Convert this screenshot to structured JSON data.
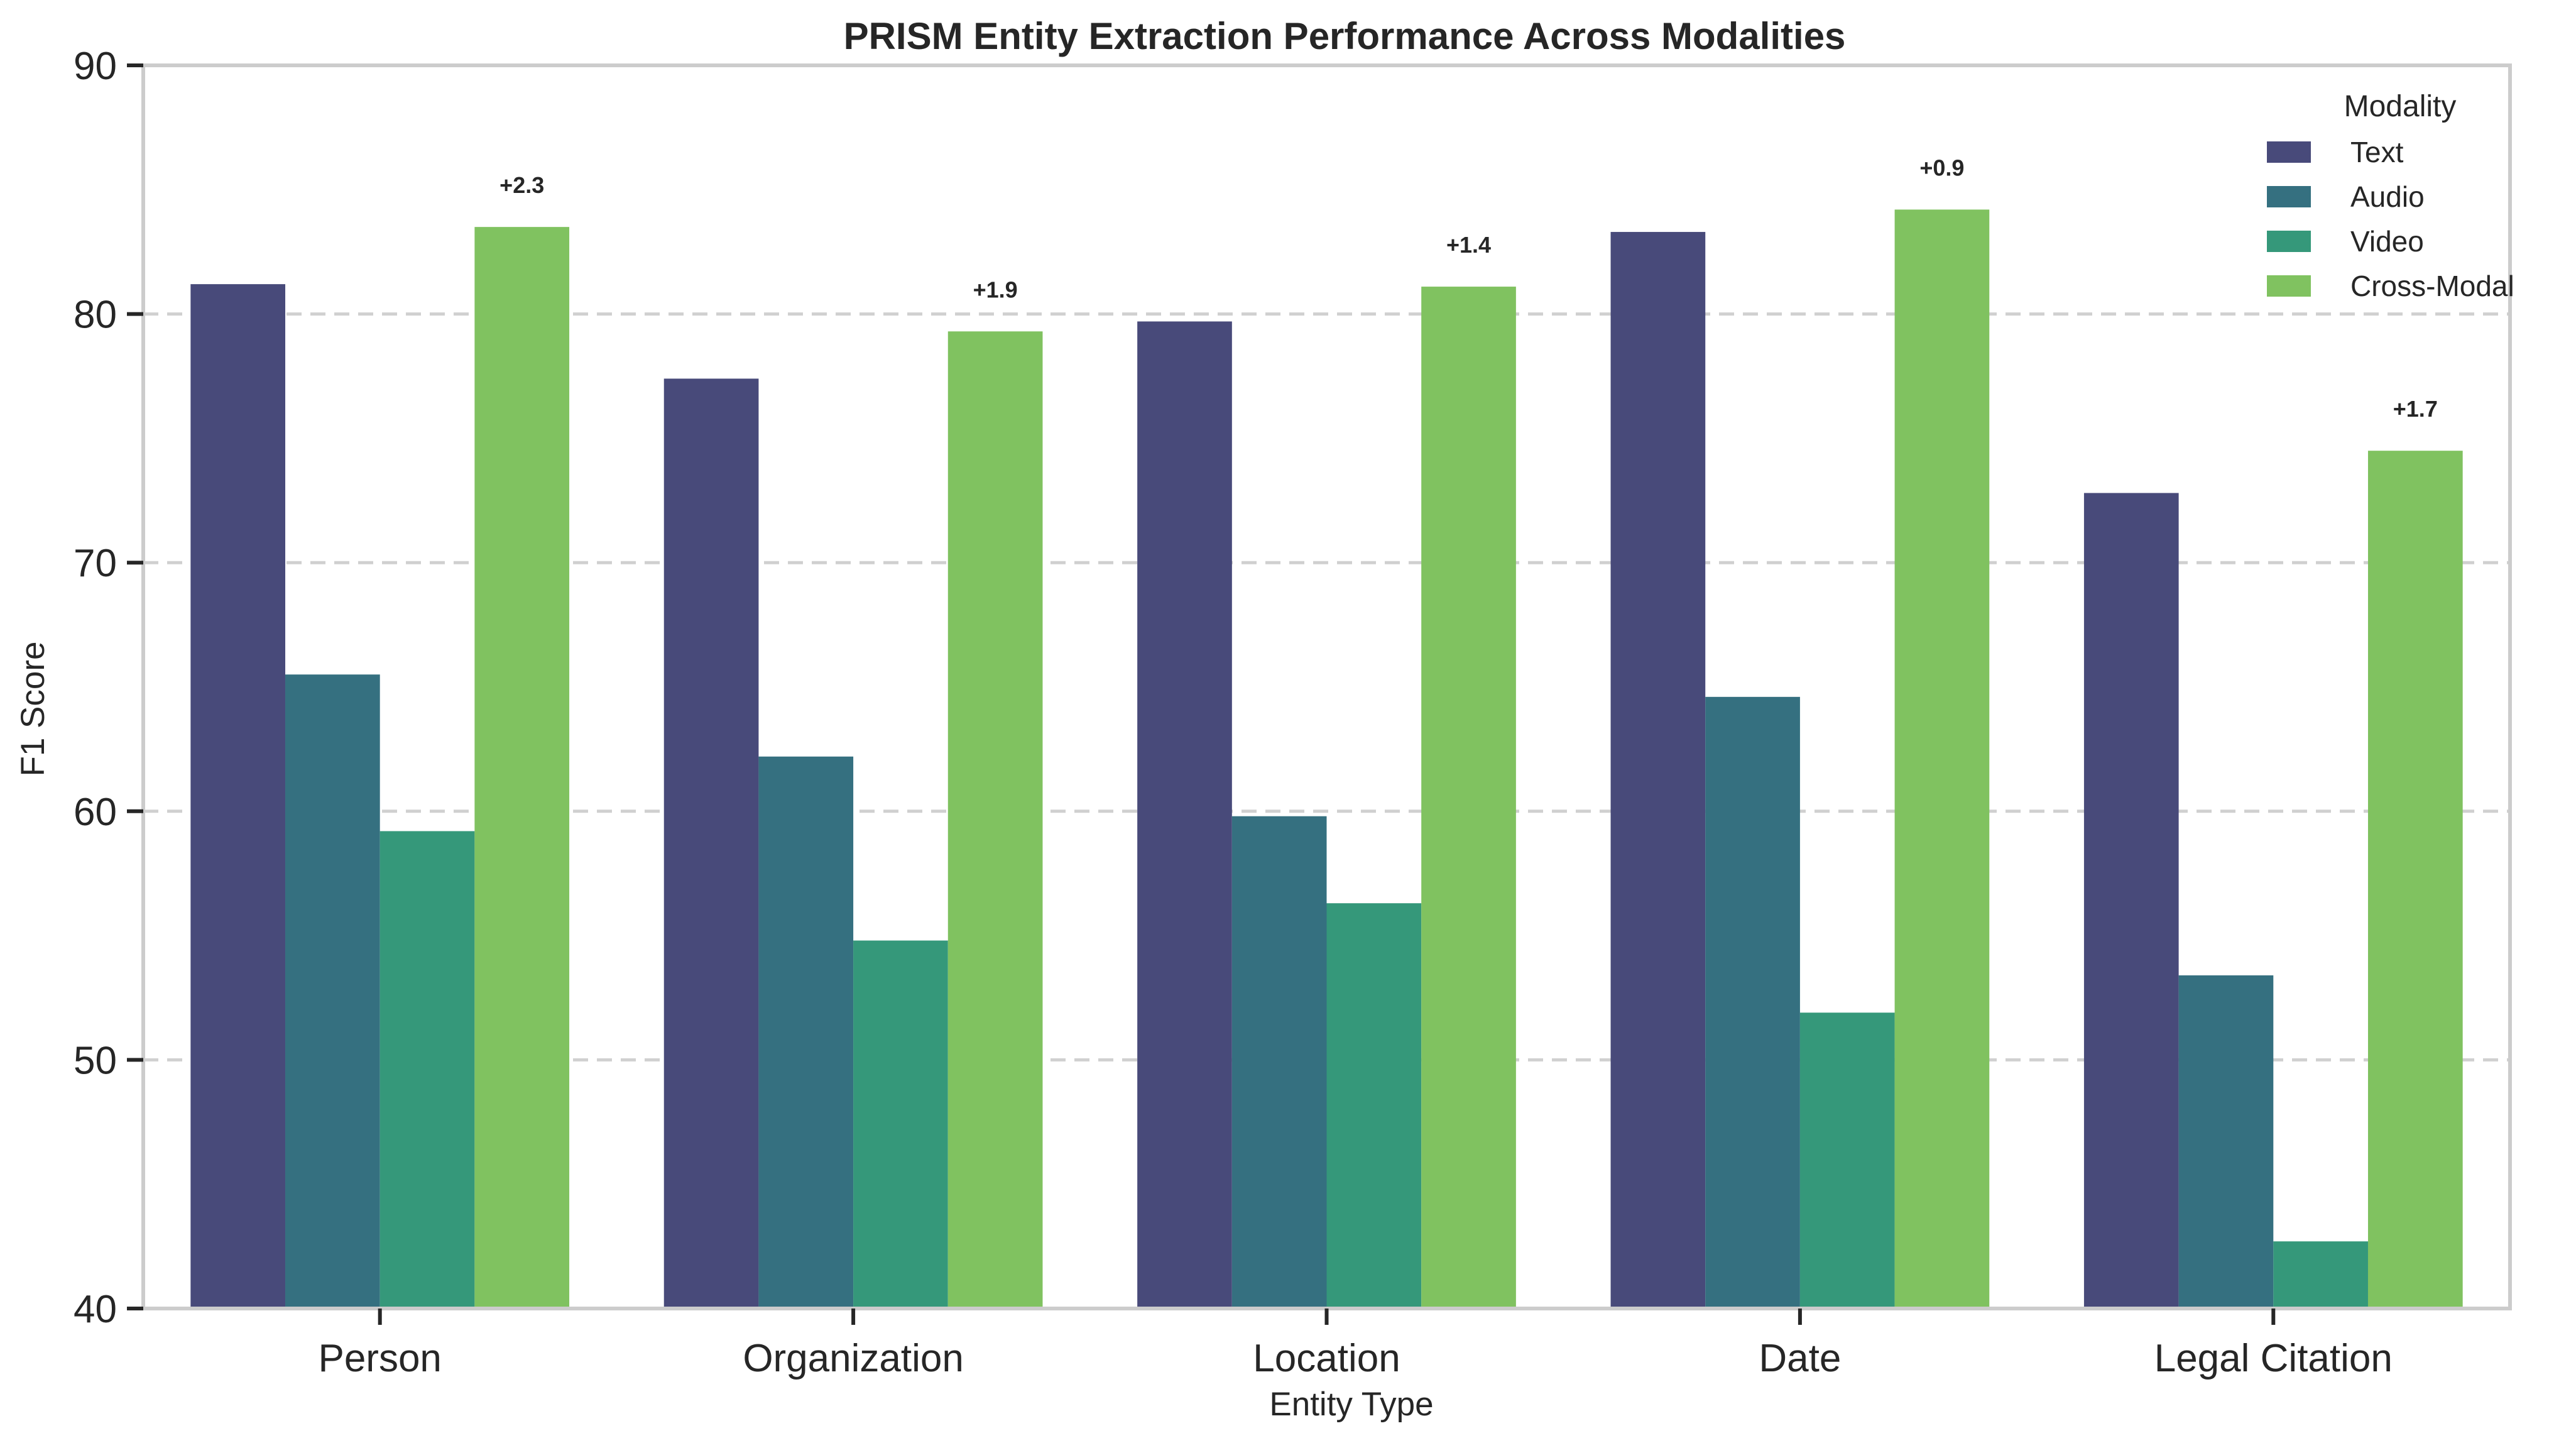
{
  "chart_data": {
    "type": "bar",
    "title": "PRISM Entity Extraction Performance Across Modalities",
    "xlabel": "Entity Type",
    "ylabel": "F1 Score",
    "ylim": [
      40,
      90
    ],
    "yticks": [
      40,
      50,
      60,
      70,
      80,
      90
    ],
    "grid": "horizontal dashed",
    "legend_title": "Modality",
    "legend_position": "top-right",
    "categories": [
      "Person",
      "Organization",
      "Location",
      "Date",
      "Legal Citation"
    ],
    "series": [
      {
        "name": "Text",
        "color": "#484a7a",
        "values": [
          81.2,
          77.4,
          79.7,
          83.3,
          72.8
        ]
      },
      {
        "name": "Audio",
        "color": "#357080",
        "values": [
          65.5,
          62.2,
          59.8,
          64.6,
          53.4
        ]
      },
      {
        "name": "Video",
        "color": "#35987a",
        "values": [
          59.2,
          54.8,
          56.3,
          51.9,
          42.7
        ]
      },
      {
        "name": "Cross-Modal",
        "color": "#80c260",
        "values": [
          83.5,
          79.3,
          81.1,
          84.2,
          74.5
        ]
      }
    ],
    "annotations": [
      "+2.3",
      "+1.9",
      "+1.4",
      "+0.9",
      "+1.7"
    ]
  }
}
